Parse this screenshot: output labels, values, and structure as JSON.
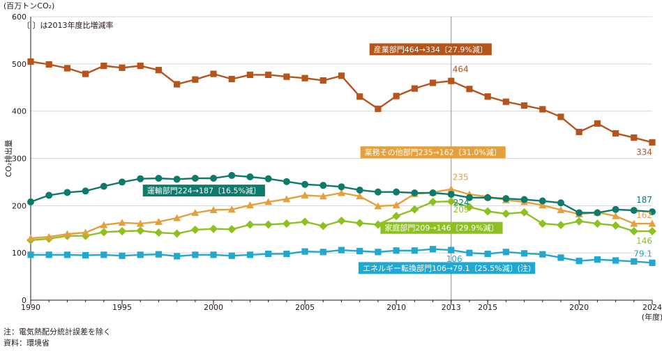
{
  "chart_data": {
    "type": "line",
    "unit_label": "(百万トンCO₂)",
    "bracket_note": "〔 〕は2013年度比増減率",
    "ylabel": "CO₂排出量",
    "xlabel": "(年度)",
    "ylim": [
      0,
      600
    ],
    "yticks": [
      0,
      100,
      200,
      300,
      400,
      500,
      600
    ],
    "xlim": [
      1990,
      2024
    ],
    "xticks": [
      1990,
      1995,
      2000,
      2005,
      2010,
      2013,
      2015,
      2020,
      2024
    ],
    "reference_year": 2013,
    "x": [
      1990,
      1991,
      1992,
      1993,
      1994,
      1995,
      1996,
      1997,
      1998,
      1999,
      2000,
      2001,
      2002,
      2003,
      2004,
      2005,
      2006,
      2007,
      2008,
      2009,
      2010,
      2011,
      2012,
      2013,
      2014,
      2015,
      2016,
      2017,
      2018,
      2019,
      2020,
      2021,
      2022,
      2023,
      2024
    ],
    "series": [
      {
        "name": "産業部門464→334〔27.9%減〕",
        "color": "#b5541b",
        "marker": "square",
        "values": [
          505,
          499,
          491,
          479,
          496,
          492,
          496,
          487,
          457,
          467,
          479,
          468,
          477,
          477,
          473,
          470,
          465,
          475,
          431,
          405,
          432,
          448,
          460,
          464,
          447,
          431,
          420,
          412,
          404,
          388,
          356,
          374,
          353,
          344,
          334
        ],
        "label_2013": "464",
        "label_end": "334"
      },
      {
        "name": "業務その他部門235→162〔31.0%減〕",
        "color": "#e4a03c",
        "marker": "triangle",
        "values": [
          131,
          134,
          140,
          143,
          159,
          164,
          162,
          166,
          174,
          185,
          191,
          192,
          201,
          208,
          214,
          222,
          220,
          227,
          220,
          199,
          201,
          225,
          228,
          235,
          224,
          219,
          212,
          208,
          201,
          191,
          182,
          186,
          178,
          162,
          162
        ],
        "label_2013": "235",
        "label_end": "162"
      },
      {
        "name": "運輸部門224→187〔16.5%減〕",
        "color": "#0e7a6c",
        "marker": "circle",
        "values": [
          208,
          222,
          228,
          231,
          241,
          250,
          257,
          258,
          256,
          258,
          258,
          264,
          261,
          257,
          251,
          245,
          243,
          240,
          233,
          229,
          229,
          227,
          227,
          224,
          217,
          217,
          215,
          213,
          210,
          206,
          185,
          185,
          192,
          190,
          187
        ],
        "label_2013": "224",
        "label_end": "187"
      },
      {
        "name": "家庭部門209→146〔29.9%減〕",
        "color": "#8cc11f",
        "marker": "diamond",
        "values": [
          127,
          130,
          136,
          136,
          144,
          146,
          147,
          143,
          141,
          149,
          151,
          150,
          160,
          160,
          162,
          166,
          157,
          168,
          163,
          160,
          178,
          192,
          208,
          209,
          197,
          188,
          183,
          186,
          162,
          159,
          167,
          162,
          158,
          146,
          146
        ],
        "label_2013": "209",
        "label_end": "146"
      },
      {
        "name": "エネルギー転換部門106→79.1〔25.5%減〕(注)",
        "color": "#22a8cf",
        "marker": "square",
        "values": [
          96,
          96,
          96,
          95,
          96,
          94,
          96,
          97,
          93,
          96,
          96,
          94,
          96,
          98,
          98,
          103,
          102,
          106,
          104,
          102,
          105,
          105,
          108,
          106,
          100,
          98,
          102,
          99,
          97,
          90,
          83,
          86,
          84,
          82,
          79.1
        ],
        "label_2013": "106",
        "label_end": "79.1"
      }
    ]
  },
  "notes": {
    "note1": "注：電気熱配分統計誤差を除く",
    "source": "資料：環境省"
  }
}
